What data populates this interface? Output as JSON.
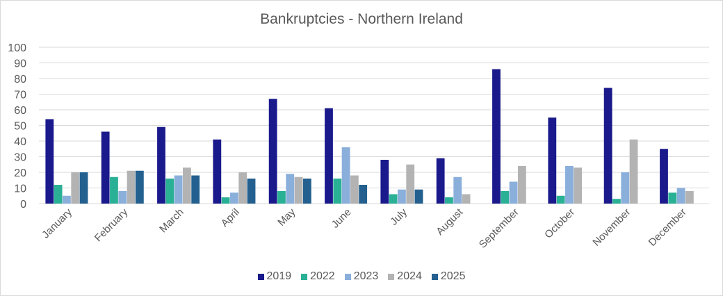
{
  "chart_data": {
    "type": "bar",
    "title": "Bankruptcies - Northern Ireland",
    "xlabel": "",
    "ylabel": "",
    "ylim": [
      0,
      100
    ],
    "yticks": [
      0,
      10,
      20,
      30,
      40,
      50,
      60,
      70,
      80,
      90,
      100
    ],
    "grid": true,
    "legend_position": "bottom",
    "categories": [
      "January",
      "February",
      "March",
      "April",
      "May",
      "June",
      "July",
      "August",
      "September",
      "October",
      "November",
      "December"
    ],
    "series": [
      {
        "name": "2019",
        "color": "#1a1a8c",
        "values": [
          54,
          46,
          49,
          41,
          67,
          61,
          28,
          29,
          86,
          55,
          74,
          35
        ]
      },
      {
        "name": "2022",
        "color": "#2ab095",
        "values": [
          12,
          17,
          16,
          4,
          8,
          16,
          6,
          4,
          8,
          5,
          3,
          7
        ]
      },
      {
        "name": "2023",
        "color": "#8aafdb",
        "values": [
          5,
          8,
          18,
          7,
          19,
          36,
          9,
          17,
          14,
          24,
          20,
          10
        ]
      },
      {
        "name": "2024",
        "color": "#b3b3b3",
        "values": [
          20,
          21,
          23,
          20,
          17,
          18,
          25,
          6,
          24,
          23,
          41,
          8
        ]
      },
      {
        "name": "2025",
        "color": "#23608f",
        "values": [
          20,
          21,
          18,
          16,
          16,
          12,
          9,
          null,
          null,
          null,
          null,
          null
        ]
      }
    ]
  }
}
